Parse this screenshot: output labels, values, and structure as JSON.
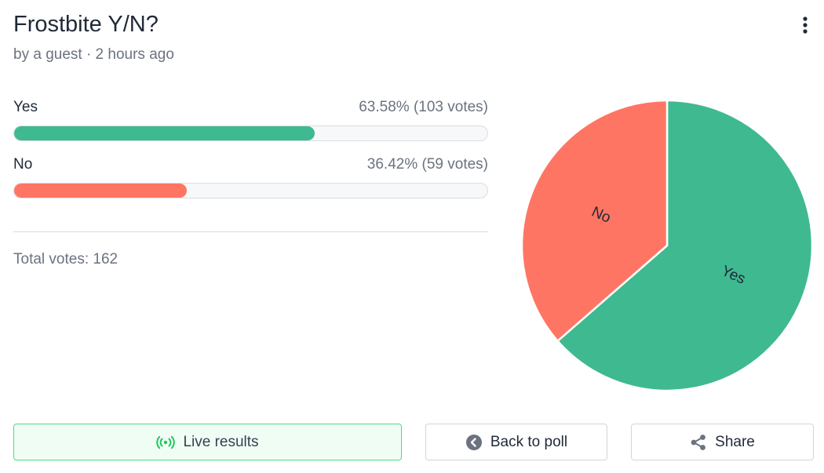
{
  "poll": {
    "title": "Frostbite Y/N?",
    "meta": "by a guest · 2 hours ago",
    "menu_icon": "more-vertical-icon"
  },
  "results": {
    "options": [
      {
        "label": "Yes",
        "stat": "63.58% (103 votes)",
        "percent": 63.58,
        "votes": 103,
        "color": "#3fb990"
      },
      {
        "label": "No",
        "stat": "36.42% (59 votes)",
        "percent": 36.42,
        "votes": 59,
        "color": "#ff7563"
      }
    ],
    "total": "Total votes: 162"
  },
  "chart_data": {
    "type": "pie",
    "categories": [
      "Yes",
      "No"
    ],
    "values": [
      63.58,
      36.42
    ],
    "counts": [
      103,
      59
    ],
    "colors": [
      "#3fb990",
      "#ff7563"
    ],
    "labels": [
      "Yes",
      "No"
    ]
  },
  "actions": {
    "live_label": "Live results",
    "live_icon": "broadcast-icon",
    "back_label": "Back to poll",
    "back_icon": "arrow-left-circle-icon",
    "share_label": "Share",
    "share_icon": "share-icon"
  },
  "colors": {
    "accent_green": "#3fb990",
    "accent_red": "#ff7563",
    "live_border": "#4ade80"
  }
}
